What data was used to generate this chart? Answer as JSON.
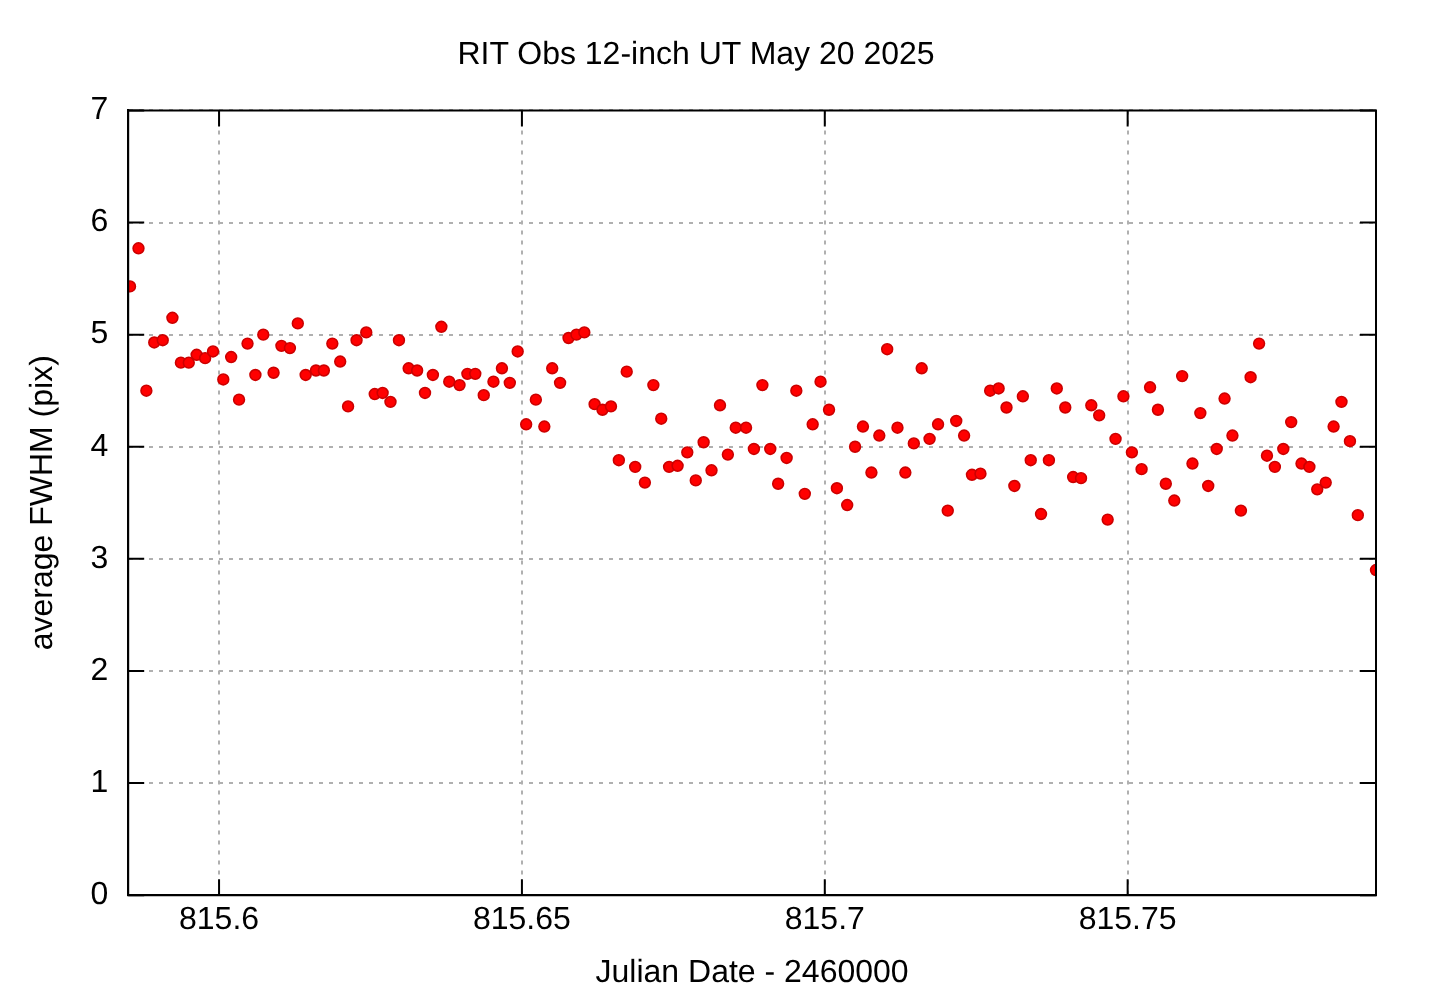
{
  "chart_data": {
    "type": "scatter",
    "title": "RIT Obs 12-inch UT May 20 2025",
    "xlabel": "Julian Date - 2460000",
    "ylabel": "average FWHM (pix)",
    "xlim": [
      815.585,
      815.791
    ],
    "xticks": [
      815.6,
      815.65,
      815.7,
      815.75
    ],
    "ylim": [
      0,
      7
    ],
    "yticks": [
      0,
      1,
      2,
      3,
      4,
      5,
      6,
      7
    ],
    "grid": true,
    "marker": "circle",
    "series": [
      {
        "color": "#ff0000",
        "x": [
          815.5853,
          815.5867,
          815.588,
          815.5893,
          815.5907,
          815.5923,
          815.5937,
          815.595,
          815.5963,
          815.5977,
          815.599,
          815.6007,
          815.602,
          815.6033,
          815.6047,
          815.606,
          815.6073,
          815.609,
          815.6103,
          815.6117,
          815.613,
          815.6143,
          815.616,
          815.6173,
          815.6187,
          815.62,
          815.6213,
          815.6227,
          815.6243,
          815.6257,
          815.627,
          815.6283,
          815.6297,
          815.6313,
          815.6327,
          815.634,
          815.6353,
          815.6367,
          815.638,
          815.6397,
          815.641,
          815.6423,
          815.6437,
          815.6453,
          815.6467,
          815.648,
          815.6493,
          815.6507,
          815.6523,
          815.6537,
          815.655,
          815.6563,
          815.6577,
          815.659,
          815.6603,
          815.662,
          815.6633,
          815.6647,
          815.666,
          815.6673,
          815.6687,
          815.6703,
          815.6717,
          815.673,
          815.6743,
          815.6757,
          815.6773,
          815.6787,
          815.68,
          815.6813,
          815.6827,
          815.684,
          815.6853,
          815.687,
          815.6883,
          815.6897,
          815.691,
          815.6923,
          815.6937,
          815.6953,
          815.6967,
          815.698,
          815.6993,
          815.7007,
          815.702,
          815.7037,
          815.705,
          815.7063,
          815.7077,
          815.709,
          815.7103,
          815.712,
          815.7133,
          815.7147,
          815.716,
          815.7173,
          815.7187,
          815.7203,
          815.7217,
          815.723,
          815.7243,
          815.7257,
          815.7273,
          815.7287,
          815.73,
          815.7313,
          815.7327,
          815.734,
          815.7357,
          815.737,
          815.7383,
          815.7397,
          815.741,
          815.7423,
          815.744,
          815.7453,
          815.7467,
          815.748,
          815.7493,
          815.7507,
          815.7523,
          815.7537,
          815.755,
          815.7563,
          815.7577,
          815.759,
          815.7607,
          815.762,
          815.7633,
          815.7647,
          815.766,
          815.7673,
          815.7687,
          815.7703,
          815.7717,
          815.773,
          815.7743,
          815.7757,
          815.777,
          815.7787,
          815.78,
          815.7813,
          815.7827,
          815.784,
          815.7853,
          815.7867,
          815.788,
          815.791
        ],
        "values": [
          5.43,
          5.77,
          4.5,
          4.93,
          4.95,
          5.15,
          4.75,
          4.75,
          4.82,
          4.79,
          4.85,
          4.6,
          4.8,
          4.42,
          4.92,
          4.64,
          5.0,
          4.66,
          4.9,
          4.88,
          5.1,
          4.64,
          4.68,
          4.68,
          4.92,
          4.76,
          4.36,
          4.95,
          5.02,
          4.47,
          4.48,
          4.4,
          4.95,
          4.7,
          4.68,
          4.48,
          4.64,
          5.07,
          4.58,
          4.55,
          4.65,
          4.65,
          4.46,
          4.58,
          4.7,
          4.57,
          4.85,
          4.2,
          4.42,
          4.18,
          4.7,
          4.57,
          4.97,
          5.0,
          5.02,
          4.38,
          4.33,
          4.36,
          3.88,
          4.67,
          3.82,
          3.68,
          4.55,
          4.25,
          3.82,
          3.83,
          3.95,
          3.7,
          4.04,
          3.79,
          4.37,
          3.93,
          4.17,
          4.17,
          3.98,
          4.55,
          3.98,
          3.67,
          3.9,
          4.5,
          3.58,
          4.2,
          4.58,
          4.33,
          3.63,
          3.48,
          4.0,
          4.18,
          3.77,
          4.1,
          4.87,
          4.17,
          3.77,
          4.03,
          4.7,
          4.07,
          4.2,
          3.43,
          4.23,
          4.1,
          3.75,
          3.76,
          4.5,
          4.52,
          4.35,
          3.65,
          4.45,
          3.88,
          3.4,
          3.88,
          4.52,
          4.35,
          3.73,
          3.72,
          4.37,
          4.28,
          3.35,
          4.07,
          4.45,
          3.95,
          3.8,
          4.53,
          4.33,
          3.67,
          3.52,
          4.63,
          3.85,
          4.3,
          3.65,
          3.98,
          4.43,
          4.1,
          3.43,
          4.62,
          4.92,
          3.92,
          3.82,
          3.98,
          4.22,
          3.85,
          3.82,
          3.62,
          3.68,
          4.18,
          4.4,
          4.05,
          3.39,
          2.9
        ]
      }
    ]
  }
}
